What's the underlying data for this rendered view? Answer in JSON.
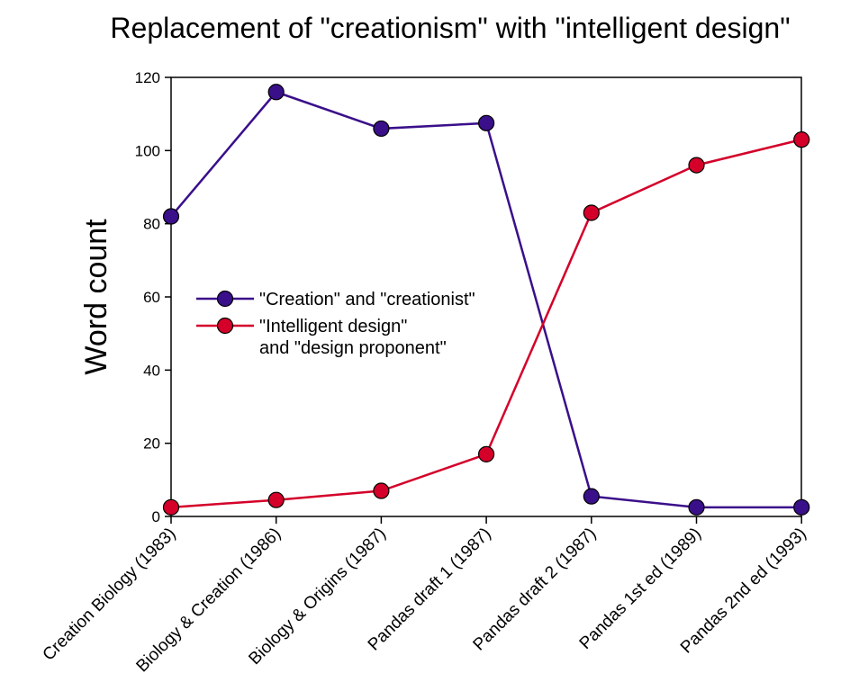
{
  "chart_data": {
    "type": "line",
    "title": "Replacement of \"creationism\" with \"intelligent design\"",
    "ylabel": "Word count",
    "xlabel": "",
    "ylim": [
      0,
      120
    ],
    "yticks": [
      "0",
      "20",
      "40",
      "60",
      "80",
      "100",
      "120"
    ],
    "grid": false,
    "legend_position": "center-left",
    "categories": [
      "Creation Biology (1983)",
      "Biology & Creation (1986)",
      "Biology & Origins (1987)",
      "Pandas draft 1 (1987)",
      "Pandas draft 2 (1987)",
      "Pandas 1st ed (1989)",
      "Pandas 2nd ed (1993)"
    ],
    "series": [
      {
        "name": "\"Creation\" and \"creationist\"",
        "color": "#3a0f8a",
        "values": [
          82,
          116,
          106,
          107.5,
          5.5,
          2.5,
          2.5
        ]
      },
      {
        "name": "\"Intelligent design\" and \"design proponent\"",
        "name_lines": [
          "\"Intelligent design\"",
          "and \"design proponent\""
        ],
        "color": "#d4002a",
        "values": [
          2.5,
          4.5,
          7,
          17,
          83,
          96,
          103
        ]
      }
    ]
  }
}
